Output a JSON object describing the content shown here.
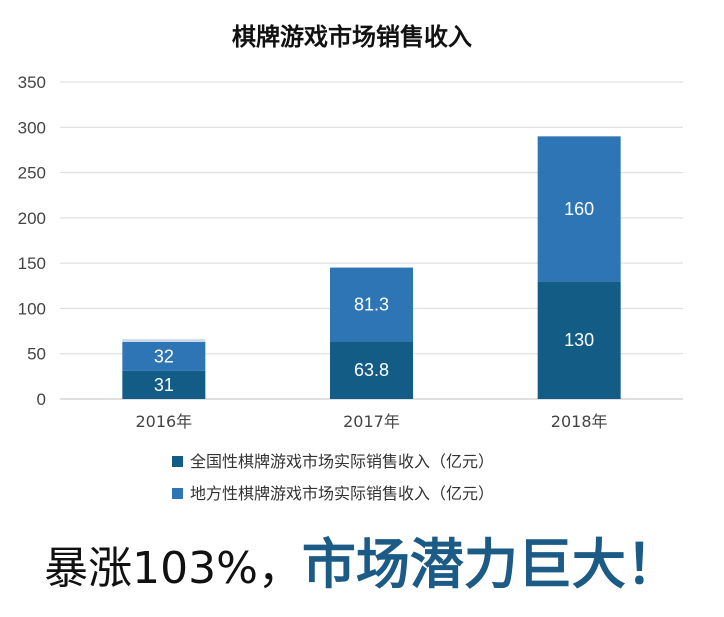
{
  "chart_data": {
    "type": "bar",
    "stacked": true,
    "title": "棋牌游戏市场销售收入",
    "categories": [
      "2016年",
      "2017年",
      "2018年"
    ],
    "ylim": [
      0,
      350
    ],
    "yticks": [
      0,
      50,
      100,
      150,
      200,
      250,
      300,
      350
    ],
    "grid": true,
    "legend_position": "bottom",
    "series": [
      {
        "name": "全国性棋牌游戏市场实际销售收入（亿元）",
        "values": [
          31,
          63.8,
          130
        ],
        "color": "#135c86"
      },
      {
        "name": "地方性棋牌游戏市场实际销售收入（亿元）",
        "values": [
          32,
          81.3,
          160
        ],
        "color": "#2e75b6"
      }
    ],
    "extra_segment": {
      "category_index": 0,
      "value": 3,
      "color": "#c9d7e8"
    }
  },
  "footer": {
    "text_plain": "暴涨103%，",
    "text_highlight": "市场潜力巨大！"
  }
}
